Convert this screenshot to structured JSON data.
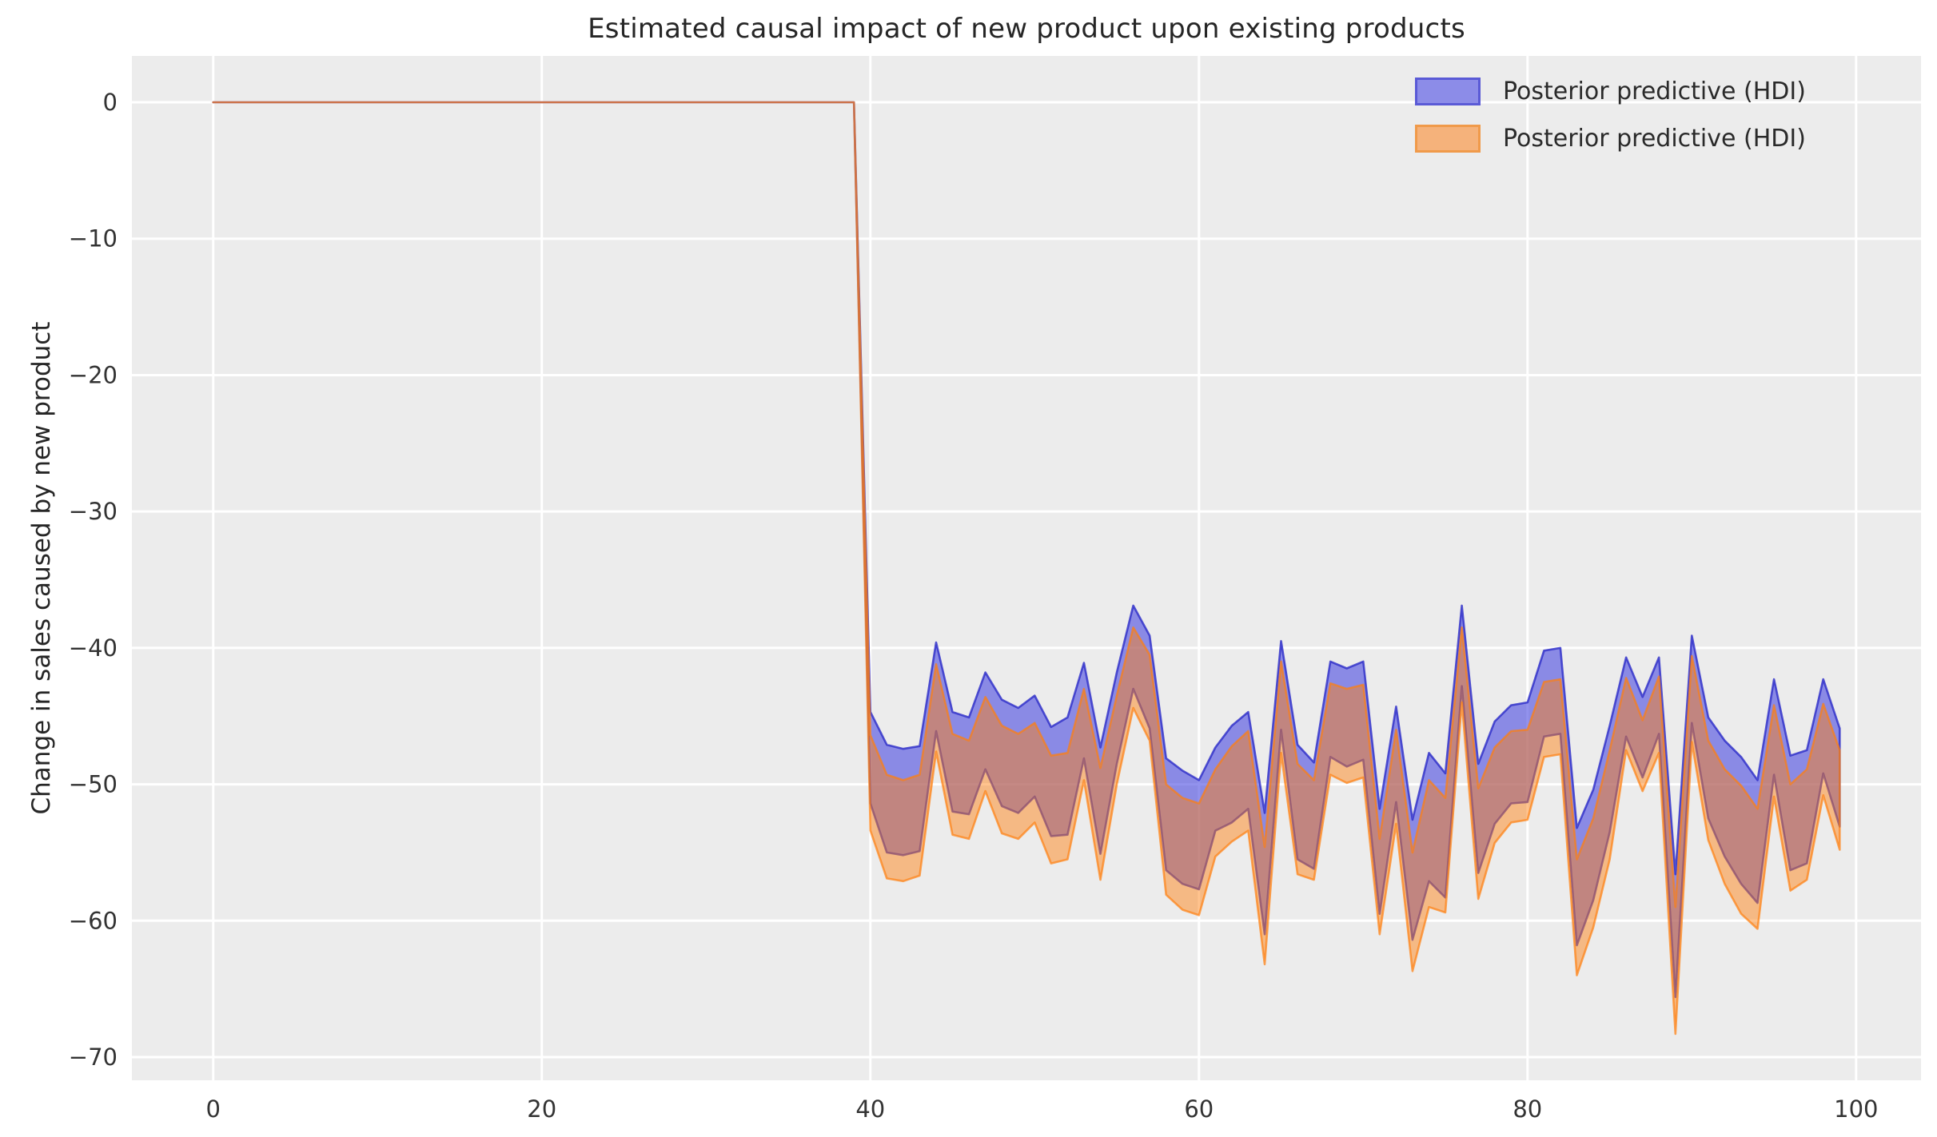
{
  "title": "Estimated causal impact of new product upon existing products",
  "y_axis_label": "Change in sales caused by new product",
  "legend": {
    "items": [
      {
        "label": "Posterior predictive (HDI)",
        "fill": "#8c8ce8",
        "border": "#5a5ad6"
      },
      {
        "label": "Posterior predictive (HDI)",
        "fill": "#f5b27b",
        "border": "#f09a4a"
      }
    ]
  },
  "chart_data": {
    "type": "area",
    "title": "Estimated causal impact of new product upon existing products",
    "xlabel": "",
    "ylabel": "Change in sales caused by new product",
    "grid": true,
    "legend_position": "upper right",
    "xlim": [
      -4.95,
      103.95
    ],
    "ylim": [
      -71.7,
      3.4
    ],
    "x_ticks": [
      0,
      20,
      40,
      60,
      80,
      100
    ],
    "x_tick_labels": [
      "0",
      "20",
      "40",
      "60",
      "80",
      "100"
    ],
    "y_ticks": [
      0,
      -10,
      -20,
      -30,
      -40,
      -50,
      -60,
      -70
    ],
    "y_tick_labels": [
      "0",
      "−10",
      "−20",
      "−30",
      "−40",
      "−50",
      "−60",
      "−70"
    ],
    "intervention_x": 40,
    "x": [
      0,
      1,
      2,
      3,
      4,
      5,
      6,
      7,
      8,
      9,
      10,
      11,
      12,
      13,
      14,
      15,
      16,
      17,
      18,
      19,
      20,
      21,
      22,
      23,
      24,
      25,
      26,
      27,
      28,
      29,
      30,
      31,
      32,
      33,
      34,
      35,
      36,
      37,
      38,
      39,
      40,
      41,
      42,
      43,
      44,
      45,
      46,
      47,
      48,
      49,
      50,
      51,
      52,
      53,
      54,
      55,
      56,
      57,
      58,
      59,
      60,
      61,
      62,
      63,
      64,
      65,
      66,
      67,
      68,
      69,
      70,
      71,
      72,
      73,
      74,
      75,
      76,
      77,
      78,
      79,
      80,
      81,
      82,
      83,
      84,
      85,
      86,
      87,
      88,
      89,
      90,
      91,
      92,
      93,
      94,
      95,
      96,
      97,
      98,
      99
    ],
    "colors": {
      "figure_bg": "#ffffff",
      "axes_bg": "#ececec",
      "grid": "#ffffff",
      "tick_label": "#333333",
      "blue_fill": "rgba(64,64,224,0.57)",
      "blue_edge": "rgba(42,42,200,0.8)",
      "orange_fill": "rgba(255,127,14,0.47)",
      "orange_edge": "rgba(255,127,14,0.7)"
    },
    "series": [
      {
        "name": "Posterior predictive (HDI)",
        "band": "blue",
        "fill": "rgba(64,64,224,0.57)",
        "edge": "rgba(42,42,200,0.8)",
        "upper": [
          0,
          0,
          0,
          0,
          0,
          0,
          0,
          0,
          0,
          0,
          0,
          0,
          0,
          0,
          0,
          0,
          0,
          0,
          0,
          0,
          0,
          0,
          0,
          0,
          0,
          0,
          0,
          0,
          0,
          0,
          0,
          0,
          0,
          0,
          0,
          0,
          0,
          0,
          0,
          0,
          -44.7,
          -47.1,
          -47.4,
          -47.2,
          -39.6,
          -44.7,
          -45.1,
          -41.8,
          -43.8,
          -44.4,
          -43.5,
          -45.8,
          -45.1,
          -41.1,
          -47.3,
          -41.8,
          -36.9,
          -39.1,
          -48.1,
          -49.0,
          -49.7,
          -47.3,
          -45.7,
          -44.7,
          -52.1,
          -39.5,
          -47.1,
          -48.4,
          -41.0,
          -41.5,
          -41.0,
          -51.8,
          -44.3,
          -52.6,
          -47.7,
          -49.2,
          -36.9,
          -48.5,
          -45.4,
          -44.2,
          -44.0,
          -40.2,
          -40.0,
          -53.2,
          -50.4,
          -45.7,
          -40.7,
          -43.6,
          -40.7,
          -56.6,
          -39.1,
          -45.1,
          -46.8,
          -48.0,
          -49.7,
          -42.3,
          -47.9,
          -47.5,
          -42.3,
          -45.9
        ],
        "lower": [
          0,
          0,
          0,
          0,
          0,
          0,
          0,
          0,
          0,
          0,
          0,
          0,
          0,
          0,
          0,
          0,
          0,
          0,
          0,
          0,
          0,
          0,
          0,
          0,
          0,
          0,
          0,
          0,
          0,
          0,
          0,
          0,
          0,
          0,
          0,
          0,
          0,
          0,
          0,
          0,
          -51.4,
          -55.0,
          -55.2,
          -54.9,
          -46.1,
          -52.0,
          -52.2,
          -48.9,
          -51.6,
          -52.1,
          -50.9,
          -53.8,
          -53.7,
          -48.1,
          -55.1,
          -48.5,
          -43.0,
          -45.9,
          -56.3,
          -57.3,
          -57.7,
          -53.4,
          -52.8,
          -51.8,
          -61.0,
          -46.0,
          -55.5,
          -56.2,
          -48.0,
          -48.7,
          -48.2,
          -59.5,
          -51.3,
          -61.4,
          -57.1,
          -58.3,
          -42.8,
          -56.5,
          -52.9,
          -51.4,
          -51.3,
          -46.5,
          -46.3,
          -61.8,
          -58.5,
          -53.5,
          -46.5,
          -49.5,
          -46.3,
          -65.6,
          -45.5,
          -52.5,
          -55.3,
          -57.3,
          -58.7,
          -49.3,
          -56.3,
          -55.8,
          -49.2,
          -53.1
        ]
      },
      {
        "name": "Posterior predictive (HDI)",
        "band": "orange",
        "fill": "rgba(255,127,14,0.47)",
        "edge": "rgba(255,127,14,0.7)",
        "upper": [
          0,
          0,
          0,
          0,
          0,
          0,
          0,
          0,
          0,
          0,
          0,
          0,
          0,
          0,
          0,
          0,
          0,
          0,
          0,
          0,
          0,
          0,
          0,
          0,
          0,
          0,
          0,
          0,
          0,
          0,
          0,
          0,
          0,
          0,
          0,
          0,
          0,
          0,
          0,
          0,
          -46.4,
          -49.3,
          -49.7,
          -49.3,
          -41.2,
          -46.3,
          -46.8,
          -43.6,
          -45.7,
          -46.3,
          -45.5,
          -47.9,
          -47.7,
          -43.0,
          -48.8,
          -43.5,
          -38.5,
          -40.5,
          -50.0,
          -51.0,
          -51.4,
          -48.9,
          -47.2,
          -46.1,
          -54.6,
          -41.0,
          -48.5,
          -49.7,
          -42.6,
          -43.0,
          -42.7,
          -54.0,
          -46.0,
          -55.0,
          -49.7,
          -51.0,
          -38.5,
          -50.3,
          -47.3,
          -46.1,
          -46.0,
          -42.5,
          -42.3,
          -55.5,
          -52.5,
          -47.5,
          -42.2,
          -45.3,
          -42.1,
          -59.0,
          -40.6,
          -46.8,
          -48.9,
          -50.1,
          -51.8,
          -44.2,
          -50.0,
          -48.9,
          -44.1,
          -47.5
        ],
        "lower": [
          0,
          0,
          0,
          0,
          0,
          0,
          0,
          0,
          0,
          0,
          0,
          0,
          0,
          0,
          0,
          0,
          0,
          0,
          0,
          0,
          0,
          0,
          0,
          0,
          0,
          0,
          0,
          0,
          0,
          0,
          0,
          0,
          0,
          0,
          0,
          0,
          0,
          0,
          0,
          0,
          -53.4,
          -56.9,
          -57.1,
          -56.7,
          -47.6,
          -53.7,
          -54.0,
          -50.5,
          -53.6,
          -54.0,
          -52.8,
          -55.8,
          -55.5,
          -49.7,
          -57.0,
          -50.0,
          -44.4,
          -46.8,
          -58.1,
          -59.2,
          -59.6,
          -55.3,
          -54.2,
          -53.4,
          -63.2,
          -47.7,
          -56.6,
          -57.0,
          -49.3,
          -49.9,
          -49.5,
          -61.0,
          -52.9,
          -63.7,
          -59.0,
          -59.4,
          -44.0,
          -58.4,
          -54.3,
          -52.8,
          -52.6,
          -48.0,
          -47.8,
          -64.0,
          -60.5,
          -55.5,
          -47.5,
          -50.5,
          -47.7,
          -68.3,
          -46.9,
          -54.1,
          -57.3,
          -59.5,
          -60.6,
          -50.9,
          -57.8,
          -57.0,
          -50.8,
          -54.8
        ]
      }
    ]
  }
}
